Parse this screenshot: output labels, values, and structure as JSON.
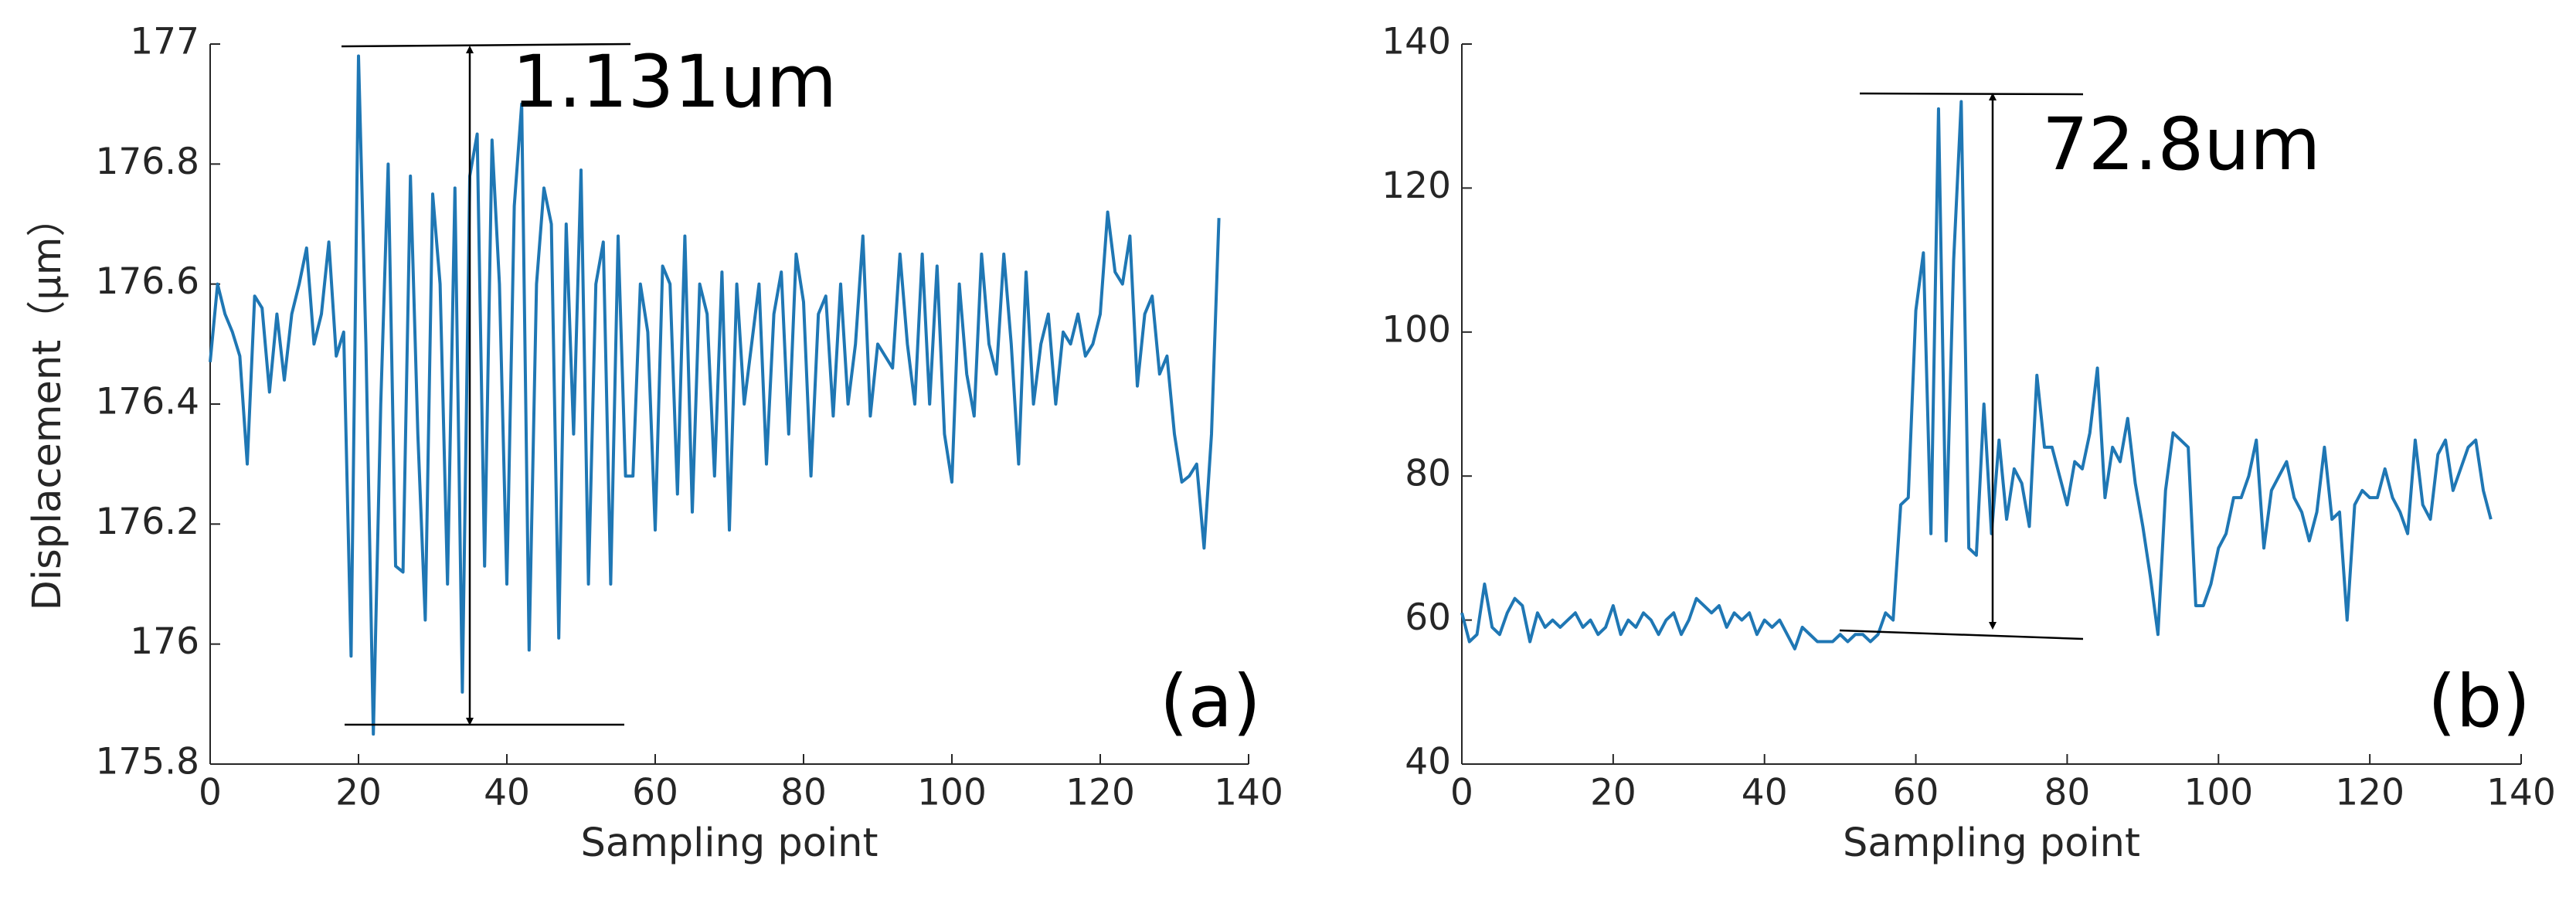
{
  "chart_data": [
    {
      "type": "line",
      "ylabel": "Displacement（μm）",
      "xlabel": "Sampling point",
      "annotation": "1.131um",
      "panel_label": "(a)",
      "color": "#1f77b4",
      "xlim": [
        0,
        140
      ],
      "xticks": [
        0,
        20,
        40,
        60,
        80,
        100,
        120,
        140
      ],
      "ylim": [
        175.8,
        177
      ],
      "yticks": [
        175.8,
        176,
        176.2,
        176.4,
        176.6,
        176.8,
        177
      ],
      "x": [
        0,
        1,
        2,
        3,
        4,
        5,
        6,
        7,
        8,
        9,
        10,
        11,
        12,
        13,
        14,
        15,
        16,
        17,
        18,
        19,
        20,
        21,
        22,
        23,
        24,
        25,
        26,
        27,
        28,
        29,
        30,
        31,
        32,
        33,
        34,
        35,
        36,
        37,
        38,
        39,
        40,
        41,
        42,
        43,
        44,
        45,
        46,
        47,
        48,
        49,
        50,
        51,
        52,
        53,
        54,
        55,
        56,
        57,
        58,
        59,
        60,
        61,
        62,
        63,
        64,
        65,
        66,
        67,
        68,
        69,
        70,
        71,
        72,
        73,
        74,
        75,
        76,
        77,
        78,
        79,
        80,
        81,
        82,
        83,
        84,
        85,
        86,
        87,
        88,
        89,
        90,
        91,
        92,
        93,
        94,
        95,
        96,
        97,
        98,
        99,
        100,
        101,
        102,
        103,
        104,
        105,
        106,
        107,
        108,
        109,
        110,
        111,
        112,
        113,
        114,
        115,
        116,
        117,
        118,
        119,
        120,
        121,
        122,
        123,
        124,
        125,
        126,
        127,
        128,
        129,
        130,
        131,
        132,
        133,
        134,
        135,
        136
      ],
      "values": [
        176.47,
        176.6,
        176.55,
        176.52,
        176.48,
        176.3,
        176.58,
        176.56,
        176.42,
        176.55,
        176.44,
        176.55,
        176.6,
        176.66,
        176.5,
        176.55,
        176.67,
        176.48,
        176.52,
        175.98,
        176.98,
        176.5,
        175.85,
        176.4,
        176.8,
        176.13,
        176.12,
        176.78,
        176.35,
        176.04,
        176.75,
        176.6,
        176.1,
        176.76,
        175.92,
        176.78,
        176.85,
        176.13,
        176.84,
        176.6,
        176.1,
        176.73,
        176.9,
        175.99,
        176.6,
        176.76,
        176.7,
        176.01,
        176.7,
        176.35,
        176.79,
        176.1,
        176.6,
        176.67,
        176.1,
        176.68,
        176.28,
        176.28,
        176.6,
        176.52,
        176.19,
        176.63,
        176.6,
        176.25,
        176.68,
        176.22,
        176.6,
        176.55,
        176.28,
        176.62,
        176.19,
        176.6,
        176.4,
        176.5,
        176.6,
        176.3,
        176.55,
        176.62,
        176.35,
        176.65,
        176.57,
        176.28,
        176.55,
        176.58,
        176.38,
        176.6,
        176.4,
        176.5,
        176.68,
        176.38,
        176.5,
        176.48,
        176.46,
        176.65,
        176.5,
        176.4,
        176.65,
        176.4,
        176.63,
        176.35,
        176.27,
        176.6,
        176.45,
        176.38,
        176.65,
        176.5,
        176.45,
        176.65,
        176.5,
        176.3,
        176.62,
        176.4,
        176.5,
        176.55,
        176.4,
        176.52,
        176.5,
        176.55,
        176.48,
        176.5,
        176.55,
        176.72,
        176.62,
        176.6,
        176.68,
        176.43,
        176.55,
        176.58,
        176.45,
        176.48,
        176.35,
        176.27,
        176.28,
        176.3,
        176.16,
        176.35,
        176.71
      ]
    },
    {
      "type": "line",
      "xlabel": "Sampling point",
      "annotation": "72.8um",
      "panel_label": "(b)",
      "color": "#1f77b4",
      "xlim": [
        0,
        140
      ],
      "xticks": [
        0,
        20,
        40,
        60,
        80,
        100,
        120,
        140
      ],
      "ylim": [
        40,
        140
      ],
      "yticks": [
        40,
        60,
        80,
        100,
        120,
        140
      ],
      "x": [
        0,
        1,
        2,
        3,
        4,
        5,
        6,
        7,
        8,
        9,
        10,
        11,
        12,
        13,
        14,
        15,
        16,
        17,
        18,
        19,
        20,
        21,
        22,
        23,
        24,
        25,
        26,
        27,
        28,
        29,
        30,
        31,
        32,
        33,
        34,
        35,
        36,
        37,
        38,
        39,
        40,
        41,
        42,
        43,
        44,
        45,
        46,
        47,
        48,
        49,
        50,
        51,
        52,
        53,
        54,
        55,
        56,
        57,
        58,
        59,
        60,
        61,
        62,
        63,
        64,
        65,
        66,
        67,
        68,
        69,
        70,
        71,
        72,
        73,
        74,
        75,
        76,
        77,
        78,
        79,
        80,
        81,
        82,
        83,
        84,
        85,
        86,
        87,
        88,
        89,
        90,
        91,
        92,
        93,
        94,
        95,
        96,
        97,
        98,
        99,
        100,
        101,
        102,
        103,
        104,
        105,
        106,
        107,
        108,
        109,
        110,
        111,
        112,
        113,
        114,
        115,
        116,
        117,
        118,
        119,
        120,
        121,
        122,
        123,
        124,
        125,
        126,
        127,
        128,
        129,
        130,
        131,
        132,
        133,
        134,
        135,
        136
      ],
      "values": [
        61,
        57,
        58,
        65,
        59,
        58,
        61,
        63,
        62,
        57,
        61,
        59,
        60,
        59,
        60,
        61,
        59,
        60,
        58,
        59,
        62,
        58,
        60,
        59,
        61,
        60,
        58,
        60,
        61,
        58,
        60,
        63,
        62,
        61,
        62,
        59,
        61,
        60,
        61,
        58,
        60,
        59,
        60,
        58,
        56,
        59,
        58,
        57,
        57,
        57,
        58,
        57,
        58,
        58,
        57,
        58,
        61,
        60,
        76,
        77,
        103,
        111,
        72,
        131,
        71,
        110,
        132,
        70,
        69,
        90,
        72,
        85,
        74,
        81,
        79,
        73,
        94,
        84,
        84,
        80,
        76,
        82,
        81,
        86,
        95,
        77,
        84,
        82,
        88,
        79,
        73,
        66,
        58,
        78,
        86,
        85,
        84,
        62,
        62,
        65,
        70,
        72,
        77,
        77,
        80,
        85,
        70,
        78,
        80,
        82,
        77,
        75,
        71,
        75,
        84,
        74,
        75,
        60,
        76,
        78,
        77,
        77,
        81,
        77,
        75,
        72,
        85,
        76,
        74,
        83,
        85,
        78,
        81,
        84,
        85,
        78,
        74
      ]
    }
  ]
}
